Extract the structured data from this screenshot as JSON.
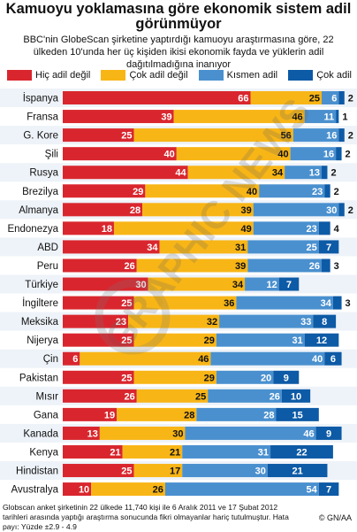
{
  "title": "Kamuoyu yoklamasına göre ekonomik sistem adil görünmüyor",
  "subtitle": "BBC'nin GlobeScan şirketine yaptırdığı kamuoyu araştırmasına göre, 22 ülkeden 10'unda her üç kişiden ikisi ekonomik fayda ve yüklerin adil dağıtılmadığına inanıyor",
  "footer": "Globscan anket şirketinin 22 ülkede 11,740 kişi ile 6 Aralık 2011 ve 17 Şubat 2012 tarihleri arasında yaptığı araştırma sonucunda fikri olmayanlar hariç tutulmuştur. Hata payı: Yüzde ±2.9 - 4.9",
  "credit": "© GN/AA",
  "colors": {
    "red": "#d9262e",
    "yellow": "#f8b516",
    "lightblue": "#4a90cf",
    "darkblue": "#0d5aa6",
    "stripe": "#eef3f9"
  },
  "chart_data": {
    "type": "bar",
    "orientation": "horizontal",
    "stacked": true,
    "legend_placement": "top",
    "categories": [
      "İspanya",
      "Fransa",
      "G. Kore",
      "Şili",
      "Rusya",
      "Brezilya",
      "Almanya",
      "Endonezya",
      "ABD",
      "Peru",
      "Türkiye",
      "İngiltere",
      "Meksika",
      "Nijerya",
      "Çin",
      "Pakistan",
      "Mısır",
      "Gana",
      "Kanada",
      "Kenya",
      "Hindistan",
      "Avustralya"
    ],
    "series": [
      {
        "name": "Hiç adil değil",
        "color": "#d9262e",
        "values": [
          66,
          39,
          25,
          40,
          44,
          29,
          28,
          18,
          34,
          26,
          30,
          25,
          23,
          25,
          6,
          25,
          26,
          19,
          13,
          21,
          25,
          10
        ]
      },
      {
        "name": "Çok adil değil",
        "color": "#f8b516",
        "values": [
          25,
          46,
          56,
          40,
          34,
          40,
          39,
          49,
          31,
          39,
          34,
          36,
          32,
          29,
          46,
          29,
          25,
          28,
          30,
          21,
          17,
          26
        ]
      },
      {
        "name": "Kısmen adil",
        "color": "#4a90cf",
        "values": [
          6,
          11,
          16,
          16,
          13,
          23,
          30,
          23,
          25,
          26,
          12,
          34,
          33,
          31,
          40,
          20,
          26,
          28,
          46,
          31,
          30,
          54
        ]
      },
      {
        "name": "Çok adil",
        "color": "#0d5aa6",
        "values": [
          2,
          1,
          2,
          2,
          2,
          2,
          2,
          4,
          7,
          3,
          7,
          3,
          8,
          12,
          6,
          9,
          10,
          15,
          9,
          22,
          21,
          7
        ]
      }
    ],
    "watermark": "GRAPHIC NEWS"
  }
}
